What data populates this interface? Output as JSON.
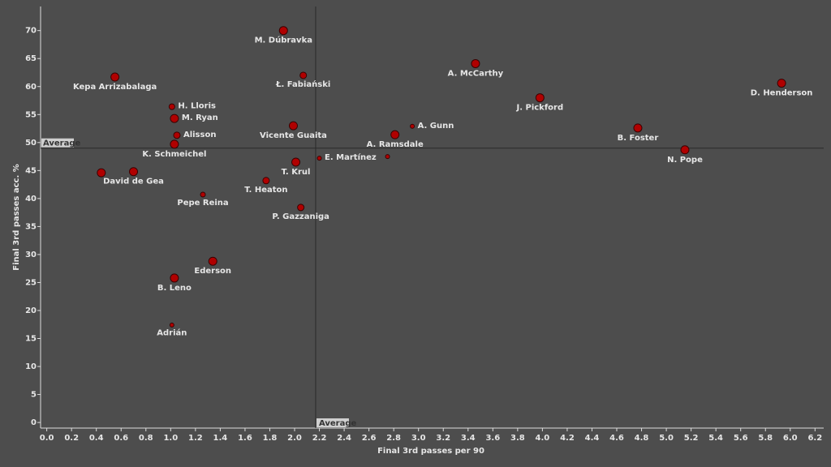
{
  "chart_data": {
    "type": "scatter",
    "x_label": "Final 3rd passes per 90",
    "y_label": "Final 3rd passes acc. %",
    "color": "#b00000",
    "names": [
      "M. Dúbravka",
      "Kepa Arrizabalaga",
      "Ł. Fabiański",
      "A. McCarthy",
      "D. Henderson",
      "J. Pickford",
      "H. Lloris",
      "M. Ryan",
      "Vicente Guaita",
      "A. Gunn",
      "B. Foster",
      "Alisson",
      "A. Ramsdale",
      "K. Schmeichel",
      "N. Pope",
      "E. Martínez",
      null,
      "T. Krul",
      "David de Gea",
      null,
      "T. Heaton",
      "Pepe Reina",
      "P. Gazzaniga",
      "Ederson",
      "B. Leno",
      "Adrián"
    ],
    "x": [
      1.91,
      0.55,
      2.07,
      3.46,
      5.93,
      3.98,
      1.01,
      1.03,
      1.99,
      2.95,
      4.77,
      1.05,
      2.81,
      1.03,
      5.15,
      2.2,
      2.75,
      2.01,
      0.7,
      0.44,
      1.77,
      1.26,
      2.05,
      1.34,
      1.03,
      1.01
    ],
    "y": [
      70.0,
      61.7,
      62.0,
      64.1,
      60.6,
      58.0,
      56.4,
      54.3,
      53.0,
      52.9,
      52.6,
      51.3,
      51.4,
      49.7,
      48.7,
      47.2,
      47.5,
      46.5,
      44.8,
      44.6,
      43.2,
      40.7,
      38.4,
      28.8,
      25.8,
      17.4
    ],
    "sizes": [
      5,
      5,
      4,
      5,
      5,
      5,
      3.5,
      5,
      5,
      2.5,
      5,
      4,
      5,
      5,
      5,
      2.5,
      2.5,
      5,
      5,
      5,
      4,
      3,
      4,
      5,
      5,
      2.5
    ],
    "averages": [
      {
        "axis": "x",
        "value": 2.17,
        "label": "Average"
      },
      {
        "axis": "y",
        "value": 49.0,
        "label": "Average"
      }
    ],
    "xlim": [
      -0.05,
      6.27
    ],
    "ylim": [
      -1,
      74.3
    ],
    "xticks": [
      {
        "value": 0,
        "label": "0.0"
      },
      {
        "value": 0.2,
        "label": "0.2"
      },
      {
        "value": 0.4,
        "label": "0.4"
      },
      {
        "value": 0.6,
        "label": "0.6"
      },
      {
        "value": 0.8,
        "label": "0.8"
      },
      {
        "value": 1,
        "label": "1.0"
      },
      {
        "value": 1.2,
        "label": "1.2"
      },
      {
        "value": 1.4,
        "label": "1.4"
      },
      {
        "value": 1.6,
        "label": "1.6"
      },
      {
        "value": 1.8,
        "label": "1.8"
      },
      {
        "value": 2,
        "label": "2.0"
      },
      {
        "value": 2.2,
        "label": "2.2"
      },
      {
        "value": 2.4,
        "label": "2.4"
      },
      {
        "value": 2.6,
        "label": "2.6"
      },
      {
        "value": 2.8,
        "label": "2.8"
      },
      {
        "value": 3,
        "label": "3.0"
      },
      {
        "value": 3.2,
        "label": "3.2"
      },
      {
        "value": 3.4,
        "label": "3.4"
      },
      {
        "value": 3.6,
        "label": "3.6"
      },
      {
        "value": 3.8,
        "label": "3.8"
      },
      {
        "value": 4,
        "label": "4.0"
      },
      {
        "value": 4.2,
        "label": "4.2"
      },
      {
        "value": 4.4,
        "label": "4.4"
      },
      {
        "value": 4.6,
        "label": "4.6"
      },
      {
        "value": 4.8,
        "label": "4.8"
      },
      {
        "value": 5,
        "label": "5.0"
      },
      {
        "value": 5.2,
        "label": "5.2"
      },
      {
        "value": 5.4,
        "label": "5.4"
      },
      {
        "value": 5.6,
        "label": "5.6"
      },
      {
        "value": 5.8,
        "label": "5.8"
      },
      {
        "value": 6,
        "label": "6.0"
      },
      {
        "value": 6.2,
        "label": "6.2"
      }
    ],
    "yticks": [
      0,
      5,
      10,
      15,
      20,
      25,
      30,
      35,
      40,
      45,
      50,
      55,
      60,
      65,
      70
    ]
  }
}
